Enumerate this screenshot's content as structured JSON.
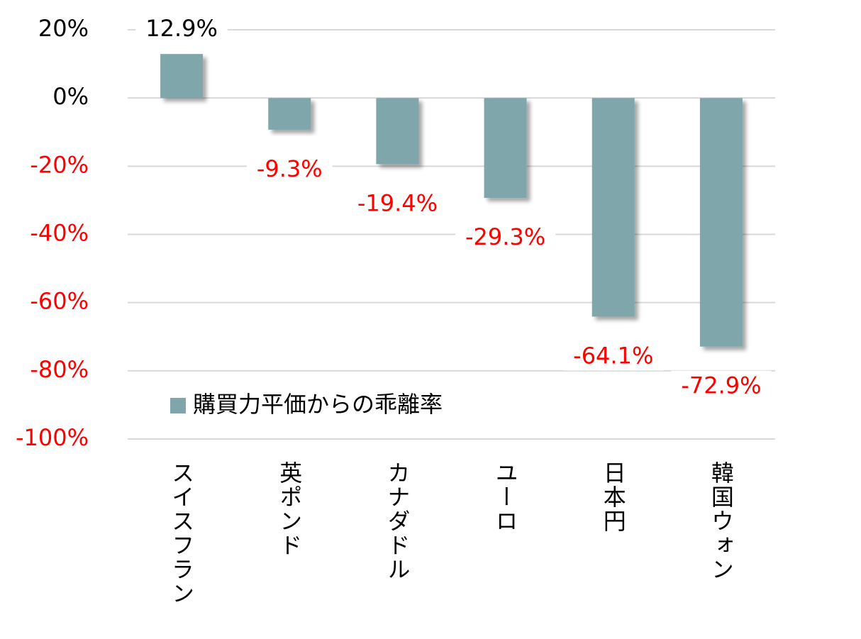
{
  "chart_data": {
    "type": "bar",
    "categories": [
      "スイスフラン",
      "英ポンド",
      "カナダドル",
      "ユーロ",
      "日本円",
      "韓国ウォン"
    ],
    "series": [
      {
        "name": "購買力平価からの乖離率",
        "color": "#7fa6aa",
        "values": [
          12.9,
          -9.3,
          -19.4,
          -29.3,
          -64.1,
          -72.9
        ],
        "value_labels": [
          "12.9%",
          "-9.3%",
          "-19.4%",
          "-29.3%",
          "-64.1%",
          "-72.9%"
        ]
      }
    ],
    "ylim": [
      -100,
      20
    ],
    "yticks": [
      {
        "value": 20,
        "label": "20%"
      },
      {
        "value": 0,
        "label": "0%"
      },
      {
        "value": -20,
        "label": "-20%"
      },
      {
        "value": -40,
        "label": "-40%"
      },
      {
        "value": -60,
        "label": "-60%"
      },
      {
        "value": -80,
        "label": "-80%"
      },
      {
        "value": -100,
        "label": "-100%"
      }
    ],
    "grid": true,
    "legend": "lower left",
    "negative_color": "#ff0000"
  }
}
